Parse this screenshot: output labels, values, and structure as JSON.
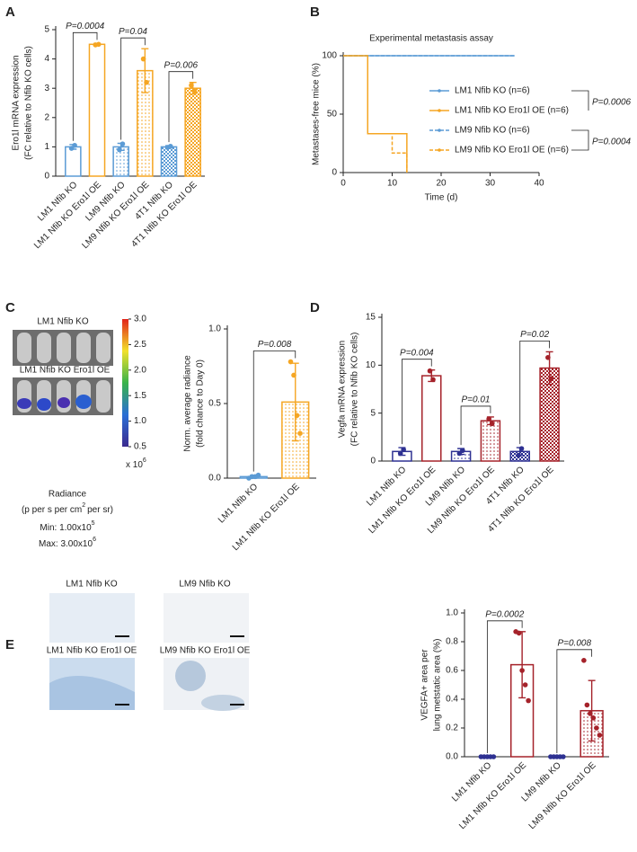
{
  "chart_data": [
    {
      "type": "bar",
      "panel": "A",
      "ylabel": [
        "Ero1l mRNA expression",
        "(FC relative to Nfib KO cells)"
      ],
      "categories": [
        "LM1 Nfib KO",
        "LM1 Nfib KO Ero1l OE",
        "LM9 Nfib KO",
        "LM9 Nfib KO Ero1l OE",
        "4T1 Nfib KO",
        "4T1 Nfib KO Ero1l OE"
      ],
      "values": [
        1.0,
        4.5,
        1.0,
        3.6,
        1.0,
        3.0
      ],
      "errors": [
        0.08,
        0.03,
        0.12,
        0.75,
        0.04,
        0.2
      ],
      "points": [
        [
          0.95,
          1.05
        ],
        [
          4.48,
          4.5
        ],
        [
          0.9,
          1.1
        ],
        [
          4.0,
          3.2
        ],
        [
          0.98,
          1.02
        ],
        [
          3.1,
          2.9
        ]
      ],
      "colors": [
        "#5b9bd5",
        "#f5a623",
        "#5b9bd5",
        "#f5a623",
        "#5b9bd5",
        "#f5a623"
      ],
      "patterns": [
        null,
        null,
        "dots",
        "dots",
        "checker",
        "checker"
      ],
      "pvalues": [
        "P=0.0004",
        "P=0.04",
        "P=0.006"
      ],
      "ylim": [
        0,
        5
      ],
      "yticks": [
        0,
        1,
        2,
        3,
        4,
        5
      ]
    },
    {
      "type": "line",
      "panel": "B",
      "title": "Experimental metastasis assay",
      "xlabel": "Time (d)",
      "ylabel": "Metastases-free mice (%)",
      "series": [
        {
          "name": "LM1 Nfib KO (n=6)",
          "color": "#5b9bd5",
          "dash": false,
          "x": [
            0,
            35
          ],
          "values": [
            100,
            100
          ]
        },
        {
          "name": "LM1 Nfib KO Ero1l OE (n=6)",
          "color": "#f5a623",
          "dash": false,
          "x": [
            0,
            5,
            5,
            13,
            13
          ],
          "values": [
            100,
            100,
            33.3,
            33.3,
            0
          ]
        },
        {
          "name": "LM9 Nfib KO (n=6)",
          "color": "#5b9bd5",
          "dash": true,
          "x": [
            0,
            35
          ],
          "values": [
            100,
            100
          ]
        },
        {
          "name": "LM9 Nfib KO Ero1l OE (n=6)",
          "color": "#f5a623",
          "dash": true,
          "x": [
            0,
            5,
            5,
            10,
            10,
            13,
            13
          ],
          "values": [
            100,
            100,
            33.3,
            33.3,
            16.7,
            16.7,
            0
          ]
        }
      ],
      "pvalues": [
        "P=0.0006",
        "P=0.0004"
      ],
      "xlim": [
        0,
        40
      ],
      "xticks": [
        0,
        10,
        20,
        30,
        40
      ],
      "ylim": [
        0,
        100
      ],
      "yticks": [
        0,
        50,
        100
      ]
    },
    {
      "type": "bar",
      "ylabel": [
        "Norm. average radiance",
        "(fold chance to Day 0)"
      ],
      "categories": [
        "LM1 Nfib KO",
        "LM1 Nfib KO Ero1l OE"
      ],
      "values": [
        0.01,
        0.51
      ],
      "errors": [
        0.01,
        0.26
      ],
      "points": [
        [
          0.0,
          0.01,
          0.01,
          0.02
        ],
        [
          0.78,
          0.69,
          0.42,
          0.3
        ]
      ],
      "colors": [
        "#5b9bd5",
        "#f5a623"
      ],
      "patterns": [
        null,
        "dots"
      ],
      "pvalues": [
        "P=0.008"
      ],
      "ylim": [
        0,
        1
      ],
      "yticks": [
        {
          "value": 0,
          "label": "0.0"
        },
        0.5,
        {
          "value": 1,
          "label": "1.0"
        }
      ]
    },
    {
      "type": "bar",
      "panel": "D",
      "ylabel": [
        "Vegfa mRNA expression",
        "(FC relative to Nfib KO cells)"
      ],
      "categories": [
        "LM1 Nfib KO",
        "LM1 Nfib KO Ero1l OE",
        "LM9 Nfib KO",
        "LM9 Nfib KO Ero1l OE",
        "4T1 Nfib KO",
        "4T1 Nfib KO Ero1l OE"
      ],
      "values": [
        1.0,
        8.9,
        1.0,
        4.2,
        1.0,
        9.7
      ],
      "errors": [
        0.4,
        0.6,
        0.3,
        0.4,
        0.4,
        1.7
      ],
      "points": [
        [
          0.8,
          1.2
        ],
        [
          9.4,
          8.5
        ],
        [
          0.8,
          1.1
        ],
        [
          4.4,
          3.9
        ],
        [
          0.6,
          1.3
        ],
        [
          10.8,
          8.6
        ]
      ],
      "colors": [
        "#2e3192",
        "#a5222a",
        "#2e3192",
        "#a5222a",
        "#2e3192",
        "#a5222a"
      ],
      "patterns": [
        null,
        null,
        "dots",
        "dots",
        "checker",
        "checker"
      ],
      "pvalues": [
        "P=0.004",
        "P=0.01",
        "P=0.02"
      ],
      "ylim": [
        0,
        15
      ],
      "yticks": [
        0,
        5,
        10,
        15
      ]
    },
    {
      "type": "bar",
      "ylabel": [
        "VEGFA+ area per",
        "lung metstatic area (%)"
      ],
      "categories": [
        "LM1 Nfib KO",
        "LM1 Nfib KO Ero1l OE",
        "LM9 Nfib KO",
        "LM9 Nfib KO Ero1l OE"
      ],
      "values": [
        0,
        0.64,
        0,
        0.32
      ],
      "errors": [
        0,
        0.23,
        0,
        0.21
      ],
      "points": [
        [
          0,
          0,
          0,
          0,
          0
        ],
        [
          0.87,
          0.86,
          0.6,
          0.5,
          0.39
        ],
        [
          0,
          0,
          0,
          0,
          0
        ],
        [
          0.67,
          0.36,
          0.3,
          0.27,
          0.2,
          0.15
        ]
      ],
      "colors": [
        "#2e3192",
        "#a5222a",
        "#2e3192",
        "#a5222a"
      ],
      "patterns": [
        null,
        null,
        "dots",
        "dots"
      ],
      "pvalues": [
        "P=0.0002",
        "P=0.008"
      ],
      "ylim": [
        0,
        1
      ],
      "yticks": [
        {
          "value": 0,
          "label": "0.0"
        },
        0.2,
        0.4,
        0.6,
        0.8,
        {
          "value": 1,
          "label": "1.0"
        }
      ]
    }
  ],
  "imaging_c": {
    "panel": "C",
    "labels": [
      "LM1 Nfib KO",
      "LM1 Nfib KO Ero1l OE"
    ],
    "colorbar": {
      "lim": [
        0.5,
        3
      ],
      "ticks": [
        0.5,
        {
          "value": 1,
          "label": "1.0"
        },
        1.5,
        {
          "value": 2,
          "label": "2.0"
        },
        2.5,
        {
          "value": 3,
          "label": "3.0"
        }
      ],
      "multiplier": {
        "base": "x 10",
        "exp": "6"
      }
    },
    "title": "Radiance",
    "unit": {
      "before": "(p per s per cm",
      "sup": "2",
      "after": "per sr)"
    },
    "min": {
      "base": "Min: 1.00x10",
      "exp": "5"
    },
    "max": {
      "base": "Max: 3.00x10",
      "exp": "6"
    }
  },
  "histology_e": {
    "panel": "E",
    "labels": [
      "LM1 Nfib KO",
      "LM9 Nfib KO",
      "LM1 Nfib KO Ero1l OE",
      "LM9 Nfib KO Ero1l OE"
    ]
  }
}
